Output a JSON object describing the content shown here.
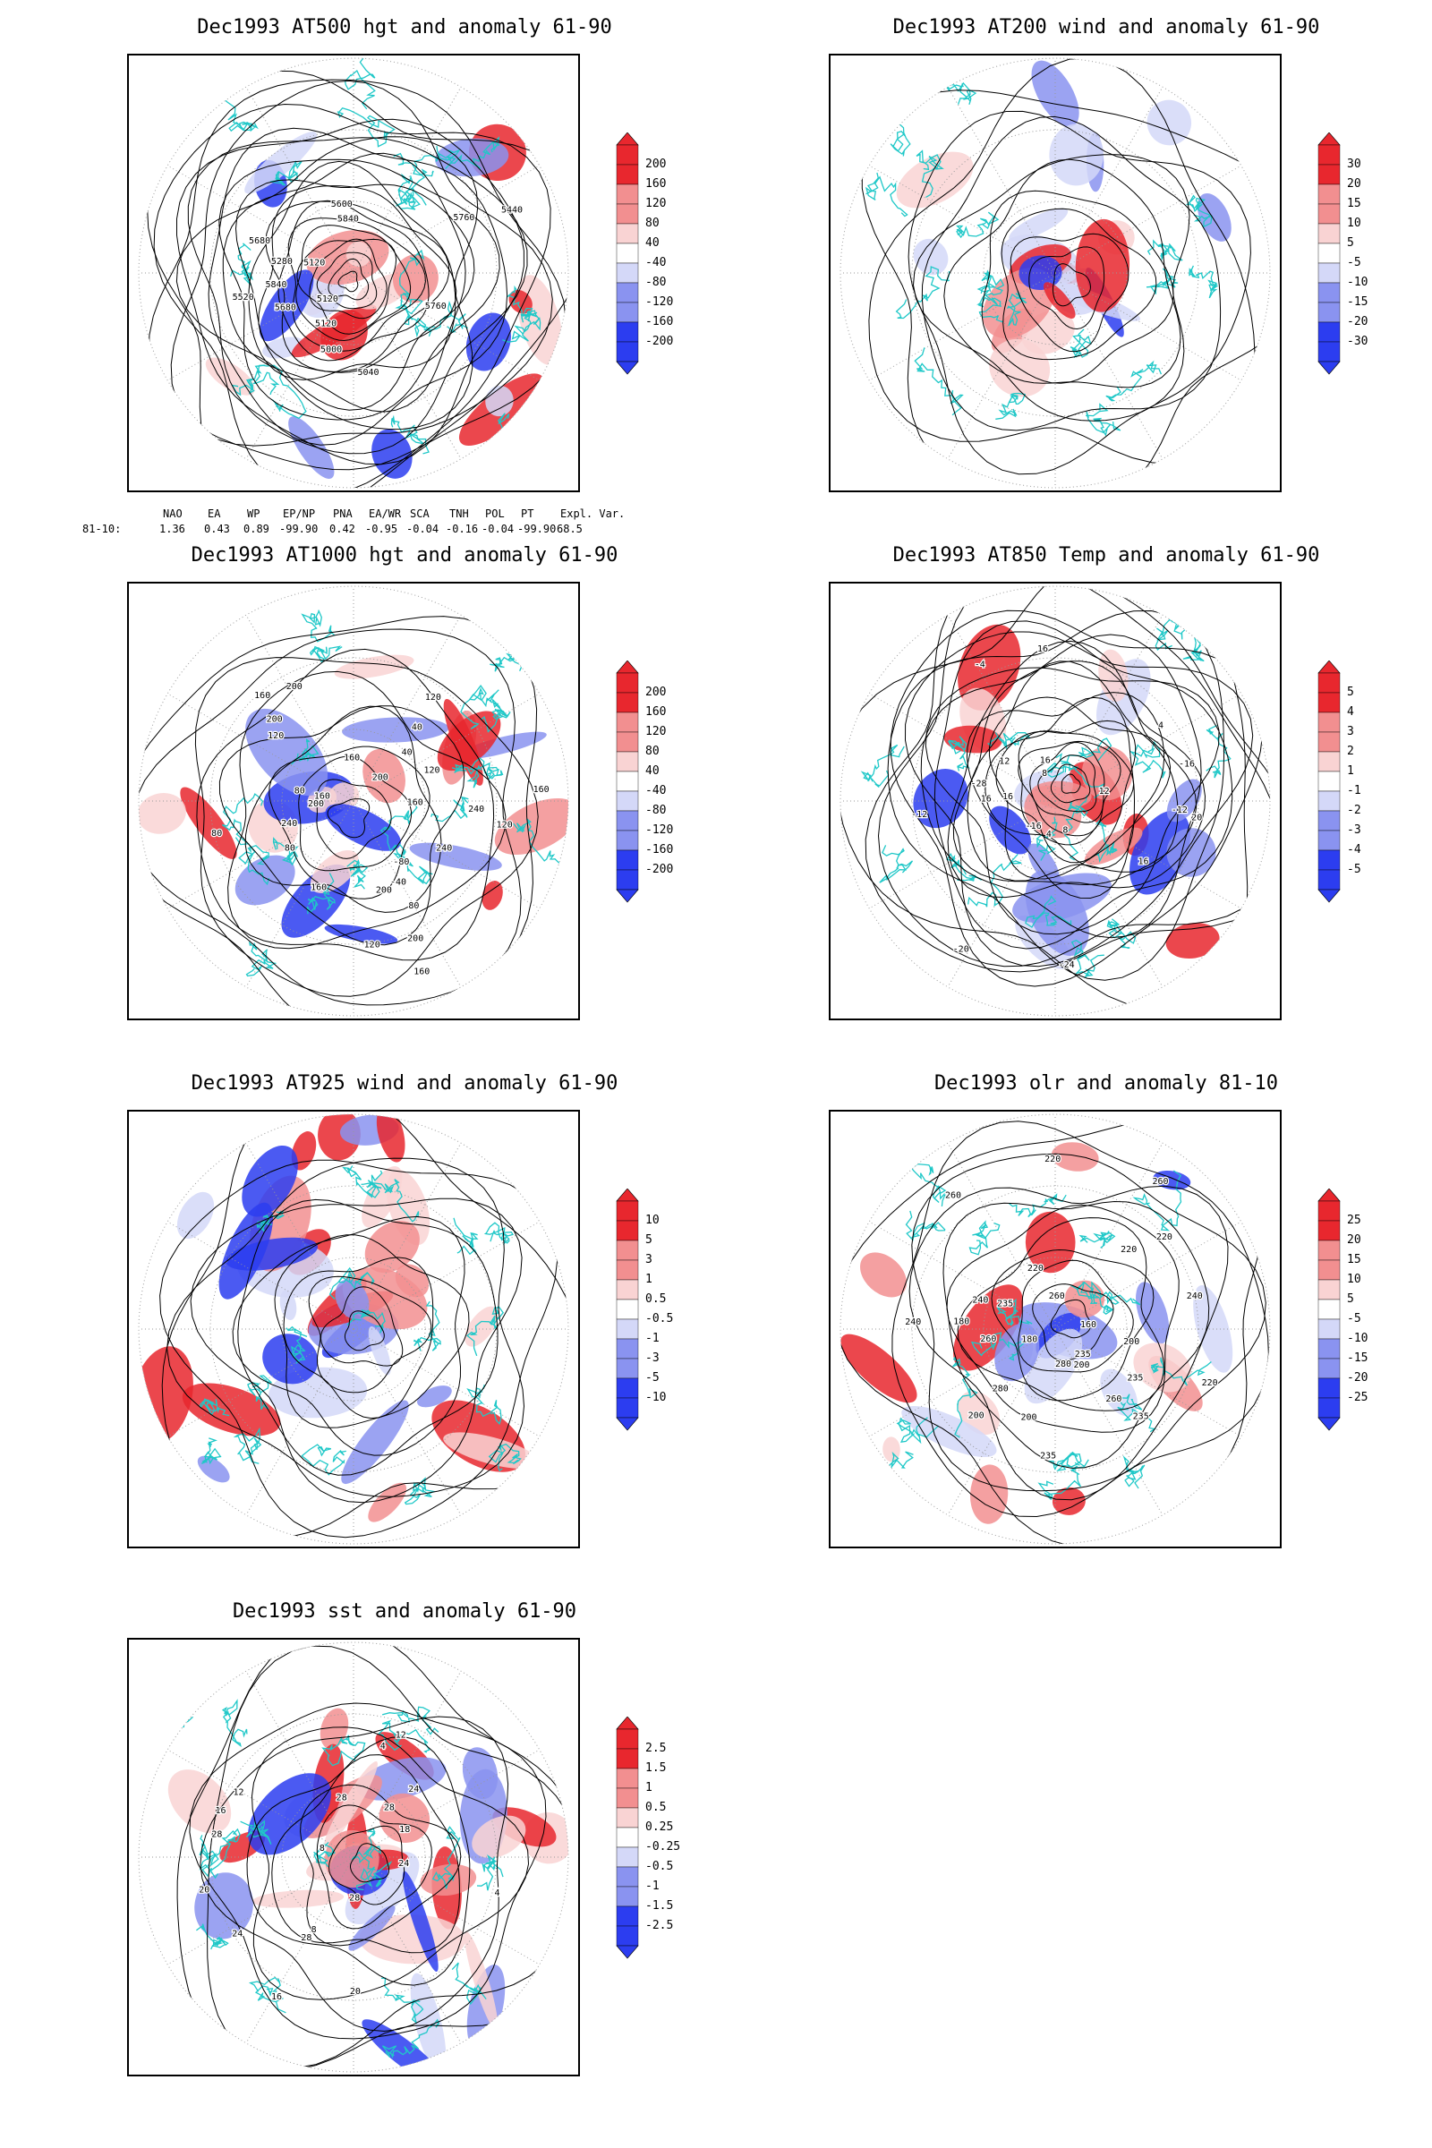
{
  "colors": {
    "red_dark": "#e8272e",
    "red_mid": "#f28f90",
    "red_light": "#f9d3d3",
    "blue_light": "#d4d8f8",
    "blue_mid": "#8a93f0",
    "blue_dark": "#2c3df0",
    "coast": "#20c8c8",
    "contour": "#000000"
  },
  "panels": [
    {
      "title": "Dec1993 AT500 hgt and anomaly 61-90",
      "colorbar": [
        "200",
        "160",
        "120",
        "80",
        "40",
        "-40",
        "-80",
        "-120",
        "-160",
        "-200"
      ],
      "contour_labels": [
        "5840",
        "5760",
        "5680",
        "5120",
        "5040",
        "5120",
        "5120",
        "5000",
        "5280",
        "5440",
        "5520",
        "5600",
        "5680",
        "5760",
        "5840"
      ],
      "index_header": [
        "NAO",
        "EA",
        "WP",
        "EP/NP",
        "PNA",
        "EA/WR",
        "SCA",
        "TNH",
        "POL",
        "PT",
        "Expl. Var."
      ],
      "index_row_label": "81-10:",
      "index_values": [
        "1.36",
        "0.43",
        "0.89",
        "-99.90",
        "0.42",
        "-0.95",
        "-0.04",
        "-0.16",
        "-0.04",
        "-99.90",
        "68.5"
      ]
    },
    {
      "title": "Dec1993 AT200 wind and anomaly 61-90",
      "colorbar": [
        "30",
        "20",
        "15",
        "10",
        "5",
        "-5",
        "-10",
        "-15",
        "-20",
        "-30"
      ],
      "contour_labels": []
    },
    {
      "title": "Dec1993 AT1000 hgt and anomaly 61-90",
      "colorbar": [
        "200",
        "160",
        "120",
        "80",
        "40",
        "-40",
        "-80",
        "-120",
        "-160",
        "-200"
      ],
      "contour_labels": [
        "80",
        "120",
        "160",
        "80",
        "40",
        "200",
        "120",
        "200",
        "200",
        "160",
        "160",
        "80",
        "40",
        "-40",
        "-80",
        "160",
        "200",
        "200",
        "240",
        "240",
        "160",
        "120",
        "80",
        "120",
        "160",
        "200",
        "240",
        "160",
        "120"
      ]
    },
    {
      "title": "Dec1993 AT850 Temp and anomaly 61-90",
      "colorbar": [
        "5",
        "4",
        "3",
        "2",
        "1",
        "-1",
        "-2",
        "-3",
        "-4",
        "-5"
      ],
      "contour_labels": [
        "16",
        "12",
        "8",
        "16",
        "-12",
        "-16",
        "-20",
        "-28",
        "-24",
        "-16",
        "-12",
        "-4",
        "4",
        "8",
        "12",
        "16",
        "20",
        "16",
        "16",
        "4"
      ]
    },
    {
      "title": "Dec1993 AT925 wind and anomaly 61-90",
      "colorbar": [
        "10",
        "5",
        "3",
        "1",
        "0.5",
        "-0.5",
        "-1",
        "-3",
        "-5",
        "-10"
      ],
      "contour_labels": []
    },
    {
      "title": "Dec1993 olr and anomaly 81-10",
      "colorbar": [
        "25",
        "20",
        "15",
        "10",
        "5",
        "-5",
        "-10",
        "-15",
        "-20",
        "-25"
      ],
      "contour_labels": [
        "235",
        "260",
        "200",
        "235",
        "260",
        "240",
        "220",
        "235",
        "220",
        "180",
        "200",
        "160",
        "180",
        "200",
        "220",
        "260",
        "280",
        "240",
        "260",
        "235",
        "220",
        "200",
        "280",
        "260",
        "240",
        "235",
        "220"
      ]
    },
    {
      "title": "Dec1993 sst and anomaly 61-90",
      "colorbar": [
        "2.5",
        "1.5",
        "1",
        "0.5",
        "0.25",
        "-0.25",
        "-0.5",
        "-1",
        "-1.5",
        "-2.5"
      ],
      "contour_labels": [
        "28",
        "24",
        "20",
        "16",
        "12",
        "8",
        "4",
        "28",
        "24",
        "28",
        "28",
        "24",
        "16",
        "12",
        "8",
        "4",
        "18",
        "20",
        "28"
      ]
    }
  ]
}
